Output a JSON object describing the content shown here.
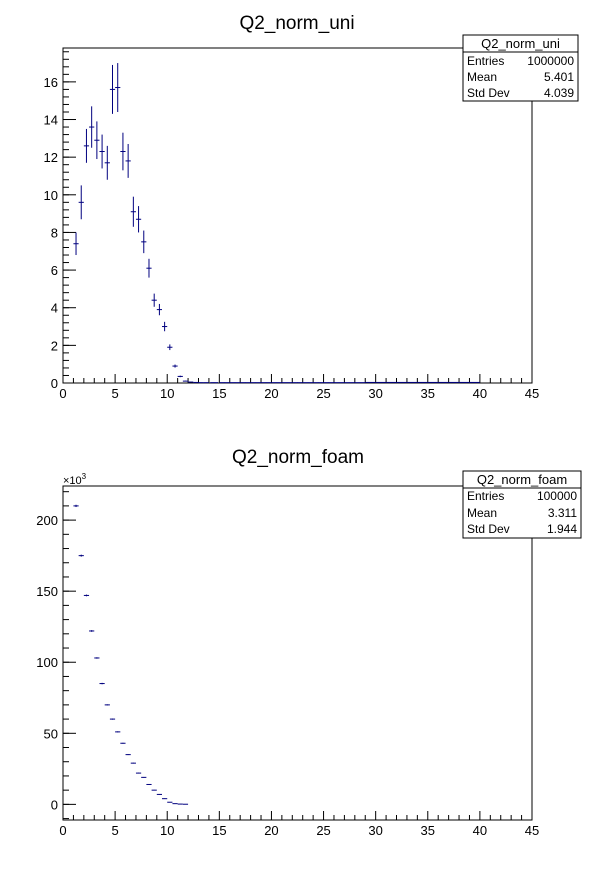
{
  "chart_data": [
    {
      "type": "scatter",
      "title": "Q2_norm_uni",
      "xlabel": "",
      "ylabel": "",
      "xlim": [
        0,
        45
      ],
      "ylim": [
        0,
        17.8
      ],
      "xticks": [
        0,
        5,
        10,
        15,
        20,
        25,
        30,
        35,
        40,
        45
      ],
      "yticks": [
        0,
        2,
        4,
        6,
        8,
        10,
        12,
        14,
        16
      ],
      "grid": false,
      "color": "#00007f",
      "stats": {
        "title": "Q2_norm_uni",
        "rows": [
          [
            "Entries",
            "1000000"
          ],
          [
            "Mean",
            "5.401"
          ],
          [
            "Std Dev",
            "4.039"
          ]
        ]
      },
      "points": [
        [
          1.25,
          7.4,
          0.6
        ],
        [
          1.75,
          9.6,
          0.9
        ],
        [
          2.25,
          12.6,
          0.9
        ],
        [
          2.75,
          13.6,
          1.1
        ],
        [
          3.25,
          12.9,
          1.0
        ],
        [
          3.75,
          12.3,
          0.9
        ],
        [
          4.25,
          11.7,
          0.9
        ],
        [
          4.75,
          15.6,
          1.3
        ],
        [
          5.25,
          15.7,
          1.3
        ],
        [
          5.75,
          12.3,
          1.0
        ],
        [
          6.25,
          11.8,
          0.9
        ],
        [
          6.75,
          9.1,
          0.8
        ],
        [
          7.25,
          8.7,
          0.7
        ],
        [
          7.75,
          7.5,
          0.6
        ],
        [
          8.25,
          6.1,
          0.5
        ],
        [
          8.75,
          4.4,
          0.35
        ],
        [
          9.25,
          3.9,
          0.3
        ],
        [
          9.75,
          3.0,
          0.25
        ],
        [
          10.25,
          1.9,
          0.15
        ],
        [
          10.75,
          0.9,
          0.08
        ],
        [
          11.25,
          0.35,
          0.04
        ],
        [
          11.75,
          0.1,
          0.02
        ],
        [
          12.25,
          0.05,
          0.01
        ],
        [
          12.75,
          0.03,
          0.01
        ],
        [
          13.25,
          0.02,
          0.01
        ],
        [
          13.75,
          0.02,
          0.01
        ],
        [
          14.5,
          0.02,
          0.01
        ],
        [
          15.5,
          0.02,
          0.01
        ],
        [
          16.5,
          0.02,
          0.01
        ],
        [
          17.5,
          0.02,
          0.01
        ],
        [
          18.5,
          0.02,
          0.01
        ],
        [
          19.5,
          0.02,
          0.01
        ],
        [
          20.5,
          0.02,
          0.01
        ],
        [
          21.5,
          0.02,
          0.01
        ],
        [
          22.5,
          0.02,
          0.01
        ],
        [
          23.5,
          0.02,
          0.01
        ],
        [
          24.5,
          0.02,
          0.01
        ],
        [
          25.5,
          0.02,
          0.01
        ],
        [
          26.5,
          0.02,
          0.01
        ],
        [
          27.5,
          0.02,
          0.01
        ],
        [
          28.5,
          0.02,
          0.01
        ],
        [
          29.5,
          0.03,
          0.02
        ],
        [
          30.5,
          0.03,
          0.02
        ],
        [
          31.5,
          0.03,
          0.02
        ],
        [
          32.5,
          0.03,
          0.02
        ],
        [
          33.5,
          0.03,
          0.02
        ],
        [
          34.5,
          0.03,
          0.02
        ],
        [
          35.5,
          0.03,
          0.02
        ],
        [
          36.5,
          0.03,
          0.02
        ],
        [
          37.5,
          0.03,
          0.02
        ],
        [
          38.5,
          0.03,
          0.02
        ],
        [
          39.5,
          0.03,
          0.02
        ]
      ]
    },
    {
      "type": "scatter",
      "title": "Q2_norm_foam",
      "xlabel": "",
      "ylabel": "",
      "exponent_label": "×10",
      "exponent_value": "3",
      "xlim": [
        0,
        45
      ],
      "ylim": [
        -11,
        224
      ],
      "xticks": [
        0,
        5,
        10,
        15,
        20,
        25,
        30,
        35,
        40,
        45
      ],
      "yticks": [
        0,
        50,
        100,
        150,
        200
      ],
      "grid": false,
      "color": "#00007f",
      "stats": {
        "title": "Q2_norm_foam",
        "rows": [
          [
            "Entries",
            "100000"
          ],
          [
            "Mean",
            "3.311"
          ],
          [
            "Std Dev",
            "1.944"
          ]
        ]
      },
      "points": [
        [
          1.25,
          210,
          0.8
        ],
        [
          1.75,
          175,
          0.7
        ],
        [
          2.25,
          147,
          0.6
        ],
        [
          2.75,
          122,
          0.6
        ],
        [
          3.25,
          103,
          0.5
        ],
        [
          3.75,
          85,
          0.5
        ],
        [
          4.25,
          70,
          0.4
        ],
        [
          4.75,
          60,
          0.4
        ],
        [
          5.25,
          51,
          0.4
        ],
        [
          5.75,
          43,
          0.3
        ],
        [
          6.25,
          35,
          0.3
        ],
        [
          6.75,
          29,
          0.3
        ],
        [
          7.25,
          22,
          0.3
        ],
        [
          7.75,
          19,
          0.2
        ],
        [
          8.25,
          14,
          0.2
        ],
        [
          8.75,
          10,
          0.2
        ],
        [
          9.25,
          7,
          0.2
        ],
        [
          9.75,
          4,
          0.2
        ],
        [
          10.25,
          1.5,
          0.1
        ],
        [
          10.75,
          0.5,
          0.1
        ],
        [
          11.25,
          0.2,
          0.1
        ],
        [
          11.75,
          0.1,
          0.1
        ]
      ]
    }
  ]
}
